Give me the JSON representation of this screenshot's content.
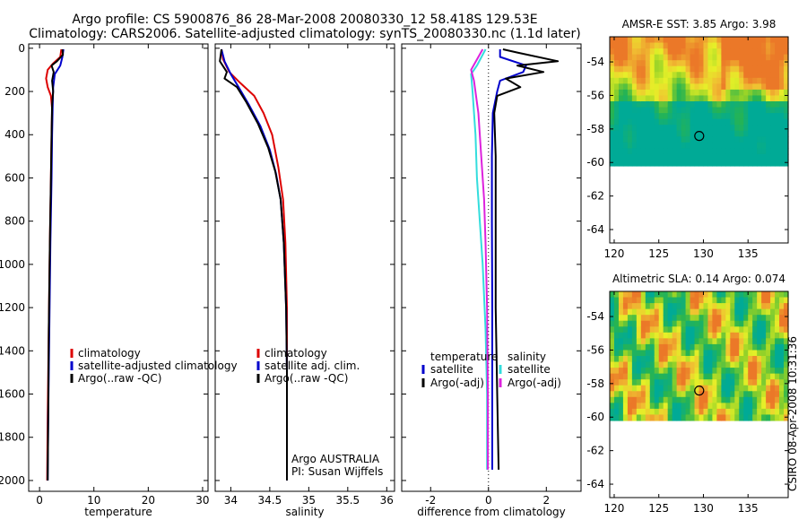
{
  "header": {
    "title_line1": "Argo profile: CS 5900876_86 28-Mar-2008 20080330_12 58.418S 129.53E",
    "title_line2": "Climatology: CARS2006. Satellite-adjusted climatology: synTS_20080330.nc (1.1d later)"
  },
  "side_text": "CSIRO 08-Apr-2008 10:31:36",
  "colors": {
    "climatology": "#dd0000",
    "satellite": "#0000cc",
    "argo": "#000000",
    "satellite_salinity": "#33dddd",
    "argo_salinity": "#dd22dd"
  },
  "chart_data": [
    {
      "type": "line",
      "id": "temperature",
      "xlabel": "temperature",
      "ylabel": "",
      "xlim": [
        -2,
        31
      ],
      "ylim": [
        2050,
        -20
      ],
      "xticks": [
        0,
        10,
        20,
        30
      ],
      "yticks": [
        0,
        200,
        400,
        600,
        800,
        1000,
        1200,
        1400,
        1600,
        1800,
        2000
      ],
      "legend": {
        "placement": "lower-right",
        "entries": [
          "climatology",
          "satellite-adjusted climatology",
          "Argo(..raw -QC)"
        ]
      },
      "series": [
        {
          "name": "climatology",
          "color": "#dd0000",
          "points": [
            [
              4.0,
              5
            ],
            [
              3.8,
              40
            ],
            [
              2.5,
              70
            ],
            [
              1.5,
              100
            ],
            [
              1.2,
              140
            ],
            [
              1.5,
              180
            ],
            [
              2.1,
              220
            ],
            [
              2.3,
              280
            ],
            [
              2.2,
              400
            ],
            [
              2.1,
              600
            ],
            [
              1.9,
              900
            ],
            [
              1.7,
              1300
            ],
            [
              1.5,
              1700
            ],
            [
              1.4,
              2000
            ]
          ]
        },
        {
          "name": "satellite-adjusted climatology",
          "color": "#0000cc",
          "points": [
            [
              4.4,
              5
            ],
            [
              4.2,
              40
            ],
            [
              3.8,
              80
            ],
            [
              2.8,
              120
            ],
            [
              2.5,
              180
            ],
            [
              2.4,
              280
            ],
            [
              2.3,
              400
            ],
            [
              2.2,
              600
            ],
            [
              2.0,
              900
            ],
            [
              1.8,
              1300
            ],
            [
              1.6,
              1700
            ],
            [
              1.5,
              2000
            ]
          ]
        },
        {
          "name": "Argo(..raw -QC)",
          "color": "#000000",
          "points": [
            [
              4.2,
              5
            ],
            [
              4.3,
              30
            ],
            [
              3.2,
              60
            ],
            [
              2.2,
              80
            ],
            [
              2.6,
              110
            ],
            [
              2.3,
              150
            ],
            [
              2.5,
              200
            ],
            [
              2.3,
              260
            ],
            [
              2.2,
              400
            ],
            [
              2.1,
              600
            ],
            [
              1.9,
              900
            ],
            [
              1.7,
              1300
            ],
            [
              1.6,
              1700
            ],
            [
              1.5,
              2000
            ]
          ]
        }
      ]
    },
    {
      "type": "line",
      "id": "salinity",
      "xlabel": "salinity",
      "ylabel": "",
      "xlim": [
        33.8,
        36.1
      ],
      "ylim": [
        2050,
        -20
      ],
      "xticks": [
        34,
        34.5,
        35,
        35.5,
        36
      ],
      "xticklabels": [
        "34",
        "34.5",
        "35",
        "35.5",
        "36"
      ],
      "yticks": [
        0,
        200,
        400,
        600,
        800,
        1000,
        1200,
        1400,
        1600,
        1800,
        2000
      ],
      "legend": {
        "placement": "lower-right",
        "entries": [
          "climatology",
          "satellite adj. clim.",
          "Argo(..raw -QC)"
        ]
      },
      "annotation": [
        "Argo AUSTRALIA",
        "PI: Susan Wijffels"
      ],
      "series": [
        {
          "name": "climatology",
          "color": "#dd0000",
          "points": [
            [
              33.88,
              5
            ],
            [
              33.9,
              50
            ],
            [
              33.98,
              110
            ],
            [
              34.12,
              160
            ],
            [
              34.3,
              220
            ],
            [
              34.42,
              300
            ],
            [
              34.53,
              400
            ],
            [
              34.61,
              550
            ],
            [
              34.67,
              700
            ],
            [
              34.7,
              900
            ],
            [
              34.72,
              1200
            ],
            [
              34.72,
              1500
            ],
            [
              34.72,
              2000
            ]
          ]
        },
        {
          "name": "satellite adj. clim.",
          "color": "#0000cc",
          "points": [
            [
              33.88,
              5
            ],
            [
              33.92,
              60
            ],
            [
              34.0,
              120
            ],
            [
              34.1,
              180
            ],
            [
              34.23,
              260
            ],
            [
              34.38,
              360
            ],
            [
              34.5,
              470
            ],
            [
              34.58,
              580
            ],
            [
              34.64,
              700
            ],
            [
              34.68,
              900
            ],
            [
              34.71,
              1200
            ],
            [
              34.72,
              1500
            ],
            [
              34.72,
              2000
            ]
          ]
        },
        {
          "name": "Argo(..raw -QC)",
          "color": "#000000",
          "points": [
            [
              33.88,
              5
            ],
            [
              33.86,
              60
            ],
            [
              33.95,
              110
            ],
            [
              33.92,
              140
            ],
            [
              34.08,
              180
            ],
            [
              34.2,
              250
            ],
            [
              34.35,
              350
            ],
            [
              34.48,
              460
            ],
            [
              34.57,
              570
            ],
            [
              34.64,
              700
            ],
            [
              34.68,
              900
            ],
            [
              34.71,
              1200
            ],
            [
              34.72,
              1500
            ],
            [
              34.72,
              2000
            ]
          ]
        }
      ]
    },
    {
      "type": "line",
      "id": "difference",
      "xlabel": "difference from climatology",
      "ylabel": "",
      "xlim": [
        -3,
        3.2
      ],
      "ylim": [
        2050,
        -20
      ],
      "xticks": [
        -2,
        0,
        2
      ],
      "yticks": [
        0,
        200,
        400,
        600,
        800,
        1000,
        1200,
        1400,
        1600,
        1800,
        2000
      ],
      "legend": {
        "placement": "lower",
        "groups": [
          {
            "heading": "temperature",
            "entries": [
              "satellite",
              "Argo(-adj)"
            ]
          },
          {
            "heading": "salinity",
            "entries": [
              "satellite",
              "Argo(-adj)"
            ]
          }
        ]
      },
      "series": [
        {
          "name": "temperature satellite",
          "color": "#0000cc",
          "points": [
            [
              0.4,
              5
            ],
            [
              0.4,
              40
            ],
            [
              1.3,
              80
            ],
            [
              1.2,
              110
            ],
            [
              0.4,
              150
            ],
            [
              0.3,
              200
            ],
            [
              0.15,
              300
            ],
            [
              0.12,
              500
            ],
            [
              0.12,
              800
            ],
            [
              0.13,
              1200
            ],
            [
              0.13,
              1600
            ],
            [
              0.13,
              1950
            ]
          ]
        },
        {
          "name": "temperature Argo(-adj)",
          "color": "#000000",
          "points": [
            [
              0.5,
              5
            ],
            [
              1.0,
              20
            ],
            [
              2.4,
              60
            ],
            [
              1.0,
              80
            ],
            [
              1.9,
              110
            ],
            [
              0.6,
              140
            ],
            [
              1.1,
              180
            ],
            [
              0.3,
              220
            ],
            [
              0.2,
              300
            ],
            [
              0.25,
              500
            ],
            [
              0.25,
              800
            ],
            [
              0.25,
              1200
            ],
            [
              0.3,
              1600
            ],
            [
              0.35,
              1950
            ]
          ]
        },
        {
          "name": "salinity satellite",
          "color": "#33dddd",
          "points": [
            [
              -0.1,
              5
            ],
            [
              -0.4,
              80
            ],
            [
              -0.6,
              120
            ],
            [
              -0.55,
              200
            ],
            [
              -0.45,
              400
            ],
            [
              -0.4,
              600
            ],
            [
              -0.3,
              800
            ],
            [
              -0.2,
              1000
            ],
            [
              -0.1,
              1300
            ],
            [
              -0.05,
              1600
            ],
            [
              -0.05,
              1950
            ]
          ]
        },
        {
          "name": "salinity Argo(-adj)",
          "color": "#dd22dd",
          "points": [
            [
              -0.2,
              5
            ],
            [
              -0.35,
              40
            ],
            [
              -0.6,
              100
            ],
            [
              -0.5,
              150
            ],
            [
              -0.35,
              300
            ],
            [
              -0.25,
              500
            ],
            [
              -0.15,
              700
            ],
            [
              -0.1,
              900
            ],
            [
              -0.05,
              1200
            ],
            [
              -0.02,
              1600
            ],
            [
              -0.02,
              1950
            ]
          ]
        }
      ]
    },
    {
      "type": "heatmap",
      "id": "amsr",
      "title": "AMSR-E SST: 3.85  Argo: 3.98",
      "xlim": [
        119.5,
        139.5
      ],
      "ylim": [
        -64.8,
        -52.5
      ],
      "xticks": [
        120,
        125,
        130,
        135
      ],
      "yticks": [
        -54,
        -56,
        -58,
        -60,
        -62,
        -64
      ],
      "data_ylim": [
        -60.2,
        -52.5
      ],
      "marker": {
        "lon": 129.53,
        "lat": -58.418
      }
    },
    {
      "type": "heatmap",
      "id": "sla",
      "title": "Altimetric SLA: 0.14  Argo: 0.074",
      "xlim": [
        119.5,
        139.5
      ],
      "ylim": [
        -64.8,
        -52.5
      ],
      "xticks": [
        120,
        125,
        130,
        135
      ],
      "yticks": [
        -54,
        -56,
        -58,
        -60,
        -62,
        -64
      ],
      "data_ylim": [
        -60.2,
        -52.5
      ],
      "marker": {
        "lon": 129.53,
        "lat": -58.418
      }
    }
  ]
}
